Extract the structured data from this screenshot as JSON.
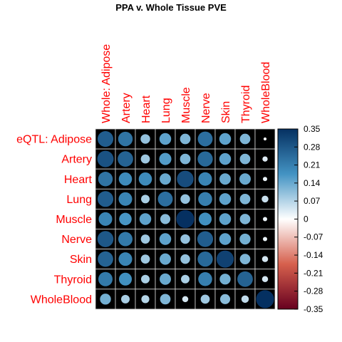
{
  "chart_data": {
    "type": "heatmap",
    "title": "PPA v. Whole Tissue PVE",
    "rows": [
      "eQTL: Adipose",
      "Artery",
      "Heart",
      "Lung",
      "Muscle",
      "Nerve",
      "Skin",
      "Thyroid",
      "WholeBlood"
    ],
    "cols": [
      "Whole: Adipose",
      "Artery",
      "Heart",
      "Lung",
      "Muscle",
      "Nerve",
      "Skin",
      "Thyroid",
      "WholeBlood"
    ],
    "values": [
      [
        0.27,
        0.23,
        0.1,
        0.15,
        0.12,
        0.24,
        0.15,
        0.12,
        0.01
      ],
      [
        0.29,
        0.26,
        0.09,
        0.16,
        0.12,
        0.25,
        0.15,
        0.12,
        0.03
      ],
      [
        0.23,
        0.19,
        0.19,
        0.14,
        0.3,
        0.2,
        0.14,
        0.14,
        0.02
      ],
      [
        0.27,
        0.2,
        0.08,
        0.24,
        0.1,
        0.21,
        0.15,
        0.12,
        0.05
      ],
      [
        0.2,
        0.17,
        0.15,
        0.11,
        0.35,
        0.18,
        0.15,
        0.12,
        0.02
      ],
      [
        0.28,
        0.22,
        0.09,
        0.15,
        0.1,
        0.27,
        0.15,
        0.13,
        0.02
      ],
      [
        0.26,
        0.2,
        0.09,
        0.14,
        0.1,
        0.25,
        0.32,
        0.12,
        0.04
      ],
      [
        0.22,
        0.18,
        0.08,
        0.14,
        0.08,
        0.21,
        0.13,
        0.26,
        0.04
      ],
      [
        0.13,
        0.08,
        0.07,
        0.12,
        0.04,
        0.09,
        0.11,
        0.06,
        0.35
      ]
    ],
    "scale": {
      "min": -0.35,
      "max": 0.35,
      "ticks": [
        "0.35",
        "0.28",
        "0.21",
        "0.14",
        "0.07",
        "0",
        "-0.07",
        "-0.14",
        "-0.21",
        "-0.28",
        "-0.35"
      ],
      "colors": {
        "negative_end": "#67001f",
        "negative_mid": "#d6604d",
        "zero": "#ffffff",
        "positive_mid": "#4393c3",
        "positive_end": "#053061"
      }
    },
    "cell_background": "#000000",
    "label_color": "#ff0000"
  }
}
